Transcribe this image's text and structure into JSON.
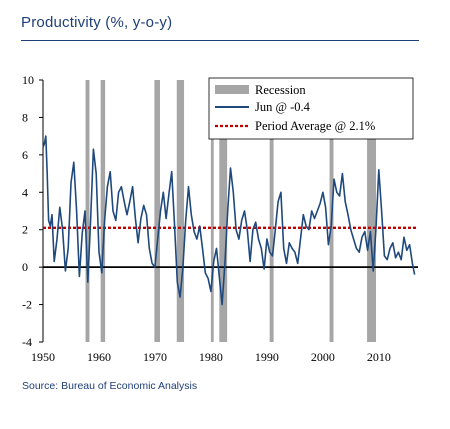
{
  "title": "Productivity (%, y-o-y)",
  "source": "Source: Bureau of Economic Analysis",
  "colors": {
    "line": "#1f497d",
    "average": "#c00000",
    "recession": "#a6a6a6",
    "zero": "#000000",
    "title": "#1f3f77"
  },
  "chart_data": {
    "type": "line",
    "title": "Productivity (%, y-o-y)",
    "xlim": [
      1950,
      2017
    ],
    "ylim": [
      -4,
      10
    ],
    "yticks": [
      -4,
      -2,
      0,
      2,
      4,
      6,
      8,
      10
    ],
    "xticks": [
      1950,
      1960,
      1970,
      1980,
      1990,
      2000,
      2010
    ],
    "grid": false,
    "legend_position": "top-right",
    "legend": [
      "Recession",
      "Jun @ -0.4",
      "Period Average @ 2.1%"
    ],
    "recessions": [
      [
        1957.6,
        1958.3
      ],
      [
        1960.3,
        1961.1
      ],
      [
        1969.9,
        1970.9
      ],
      [
        1973.9,
        1975.2
      ],
      [
        1980.0,
        1980.5
      ],
      [
        1981.5,
        1982.9
      ],
      [
        1990.5,
        1991.2
      ],
      [
        2001.2,
        2001.9
      ],
      [
        2007.9,
        2009.5
      ]
    ],
    "average": 2.1,
    "series": [
      {
        "name": "Jun @ -0.4",
        "x": [
          1950.0,
          1950.25,
          1950.5,
          1950.75,
          1951.0,
          1951.3,
          1951.6,
          1952.0,
          1952.5,
          1953.0,
          1953.5,
          1954.0,
          1954.5,
          1955.0,
          1955.5,
          1956.0,
          1956.5,
          1957.0,
          1957.5,
          1958.0,
          1958.5,
          1959.0,
          1959.5,
          1960.0,
          1960.5,
          1961.0,
          1961.5,
          1962.0,
          1962.5,
          1963.0,
          1963.5,
          1964.0,
          1964.5,
          1965.0,
          1965.5,
          1966.0,
          1966.5,
          1967.0,
          1967.5,
          1968.0,
          1968.5,
          1969.0,
          1969.5,
          1970.0,
          1970.5,
          1971.0,
          1971.5,
          1972.0,
          1972.5,
          1973.0,
          1973.5,
          1974.0,
          1974.5,
          1975.0,
          1975.5,
          1976.0,
          1976.5,
          1977.0,
          1977.5,
          1978.0,
          1978.5,
          1979.0,
          1979.5,
          1980.0,
          1980.5,
          1981.0,
          1981.5,
          1982.0,
          1982.5,
          1983.0,
          1983.5,
          1984.0,
          1984.5,
          1985.0,
          1985.5,
          1986.0,
          1986.5,
          1987.0,
          1987.5,
          1988.0,
          1988.5,
          1989.0,
          1989.5,
          1990.0,
          1990.5,
          1991.0,
          1991.5,
          1992.0,
          1992.5,
          1993.0,
          1993.5,
          1994.0,
          1994.5,
          1995.0,
          1995.5,
          1996.0,
          1996.5,
          1997.0,
          1997.5,
          1998.0,
          1998.5,
          1999.0,
          1999.5,
          2000.0,
          2000.5,
          2001.0,
          2001.5,
          2002.0,
          2002.5,
          2003.0,
          2003.5,
          2004.0,
          2004.5,
          2005.0,
          2005.5,
          2006.0,
          2006.5,
          2007.0,
          2007.5,
          2008.0,
          2008.5,
          2009.0,
          2009.5,
          2010.0,
          2010.5,
          2011.0,
          2011.5,
          2012.0,
          2012.5,
          2013.0,
          2013.5,
          2014.0,
          2014.5,
          2015.0,
          2015.5,
          2016.0,
          2016.4
        ],
        "y": [
          6.4,
          6.6,
          7.0,
          5.0,
          2.5,
          2.2,
          2.8,
          0.3,
          1.5,
          3.2,
          2.0,
          -0.2,
          1.0,
          4.5,
          5.6,
          3.0,
          -0.5,
          1.8,
          3.0,
          -0.8,
          2.5,
          6.3,
          5.0,
          0.8,
          -0.3,
          2.5,
          4.3,
          5.1,
          3.0,
          2.5,
          4.0,
          4.3,
          3.5,
          2.8,
          3.5,
          4.3,
          2.6,
          1.3,
          2.6,
          3.3,
          2.8,
          1.0,
          0.2,
          0.0,
          1.5,
          3.0,
          4.0,
          2.6,
          3.9,
          5.1,
          2.3,
          -0.8,
          -1.6,
          0.0,
          2.5,
          4.3,
          2.8,
          1.9,
          1.5,
          2.2,
          1.0,
          -0.3,
          -0.6,
          -1.3,
          0.3,
          1.0,
          -0.5,
          -2.0,
          0.2,
          3.0,
          5.3,
          4.0,
          2.0,
          1.5,
          2.5,
          3.0,
          2.0,
          0.3,
          2.0,
          2.4,
          1.5,
          1.0,
          -0.1,
          1.5,
          0.8,
          0.6,
          2.0,
          3.5,
          4.0,
          1.0,
          0.2,
          1.3,
          1.0,
          0.8,
          0.2,
          1.5,
          2.8,
          2.2,
          2.0,
          3.0,
          2.6,
          3.0,
          3.4,
          4.0,
          3.2,
          1.2,
          2.2,
          4.7,
          4.0,
          3.8,
          5.0,
          3.5,
          2.8,
          2.0,
          1.5,
          1.0,
          0.8,
          1.6,
          1.9,
          0.9,
          1.9,
          -0.2,
          2.1,
          5.2,
          3.0,
          0.6,
          0.4,
          1.0,
          1.3,
          0.5,
          0.8,
          0.4,
          1.6,
          0.9,
          1.2,
          0.2,
          -0.4
        ]
      }
    ]
  }
}
